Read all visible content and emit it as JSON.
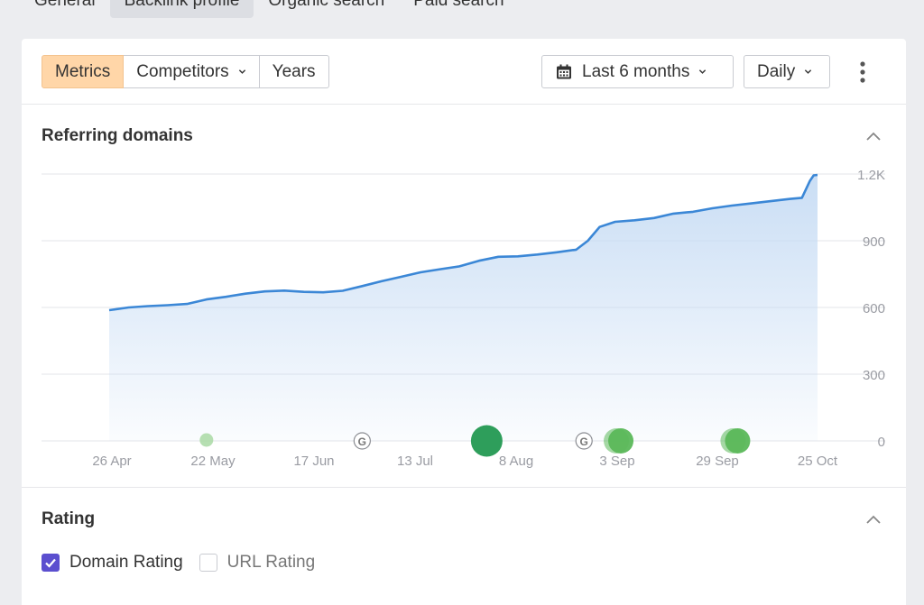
{
  "top_tabs": [
    {
      "label": "General",
      "active": false
    },
    {
      "label": "Backlink profile",
      "active": true
    },
    {
      "label": "Organic search",
      "active": false
    },
    {
      "label": "Paid search",
      "active": false
    }
  ],
  "toolbar": {
    "segments": [
      {
        "label": "Metrics",
        "active": true,
        "dropdown": false
      },
      {
        "label": "Competitors",
        "active": false,
        "dropdown": true
      },
      {
        "label": "Years",
        "active": false,
        "dropdown": false
      }
    ],
    "period_label": "Last 6 months",
    "granularity_label": "Daily",
    "icons": {
      "calendar": "calendar-icon",
      "more": "more-vertical-icon",
      "chevron": "chevron-down-icon"
    }
  },
  "referring_domains": {
    "title": "Referring domains",
    "collapse_icon": "chevron-up-icon"
  },
  "chart_data": {
    "type": "area",
    "title": "Referring domains",
    "x_ticks": [
      "26 Apr",
      "22 May",
      "17 Jun",
      "13 Jul",
      "8 Aug",
      "3 Sep",
      "29 Sep",
      "25 Oct"
    ],
    "y_ticks": [
      "1.2K",
      "900",
      "600",
      "300",
      "0"
    ],
    "ylim": [
      0,
      1200
    ],
    "grid": true,
    "line_color": "#3b87d6",
    "fill_color": "#c7dcf4",
    "series": [
      {
        "x": [
          0,
          5,
          10,
          15,
          20,
          25,
          30,
          35,
          40,
          45,
          50,
          55,
          60,
          65,
          70,
          75,
          80,
          85,
          90,
          95,
          100,
          105,
          110,
          115,
          120,
          123,
          126,
          130,
          135,
          140,
          145,
          150,
          155,
          160,
          165,
          170,
          175,
          178,
          180,
          181,
          182
        ],
        "values": [
          588,
          600,
          606,
          610,
          616,
          636,
          648,
          662,
          672,
          676,
          670,
          668,
          675,
          696,
          718,
          738,
          758,
          772,
          785,
          810,
          828,
          830,
          838,
          848,
          860,
          900,
          962,
          985,
          992,
          1002,
          1022,
          1030,
          1046,
          1058,
          1068,
          1078,
          1088,
          1093,
          1168,
          1194,
          1196
        ]
      }
    ],
    "annotations": [
      {
        "type": "event",
        "x": 25,
        "size": "small",
        "color": "#a9d9a5",
        "opacity": 0.85
      },
      {
        "type": "google",
        "x": 65
      },
      {
        "type": "event",
        "x": 97,
        "size": "large",
        "color": "#2e9e5b"
      },
      {
        "type": "google",
        "x": 122
      },
      {
        "type": "event",
        "x": 131,
        "size": "medium",
        "color": "#5bb85a"
      },
      {
        "type": "event",
        "x": 161,
        "size": "medium",
        "color": "#5bb85a"
      }
    ],
    "google_badge_label": "G"
  },
  "rating": {
    "title": "Rating",
    "collapse_icon": "chevron-up-icon",
    "options": [
      {
        "label": "Domain Rating",
        "checked": true
      },
      {
        "label": "URL Rating",
        "checked": false
      }
    ]
  }
}
